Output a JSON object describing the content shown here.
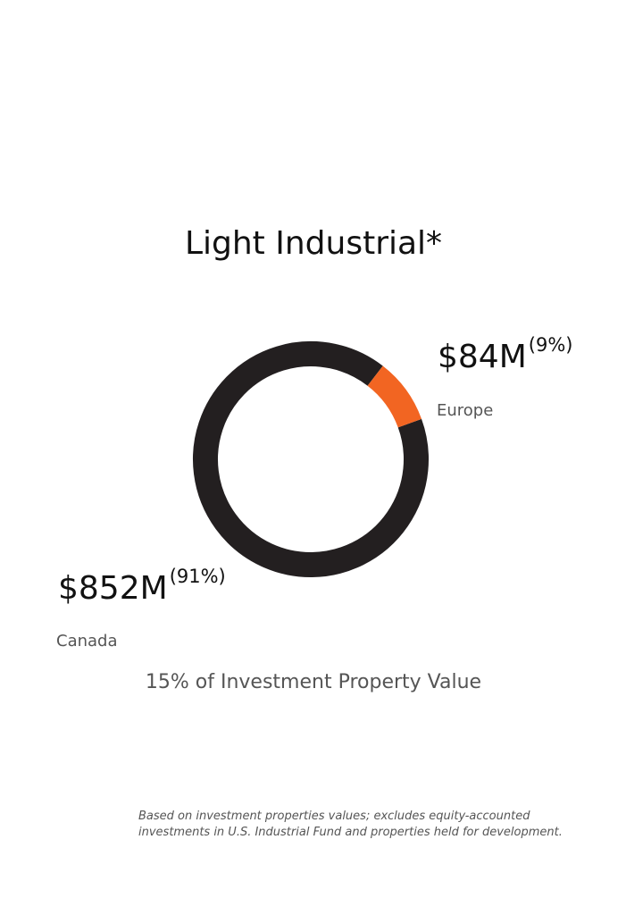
{
  "chart_data": {
    "type": "pie",
    "donut": true,
    "title": "Light Industrial*",
    "categories": [
      "Canada",
      "Europe"
    ],
    "values": [
      852,
      84
    ],
    "value_labels": [
      "$852M",
      "$84M"
    ],
    "percent_labels": [
      "(91%)",
      "(9%)"
    ],
    "colors": [
      "#231f20",
      "#f26522"
    ],
    "subtitle": "15% of Investment Property Value"
  },
  "footnote": [
    "Based on investment properties values; excludes equity-accounted",
    "investments in U.S. Industrial Fund and properties held for development."
  ]
}
